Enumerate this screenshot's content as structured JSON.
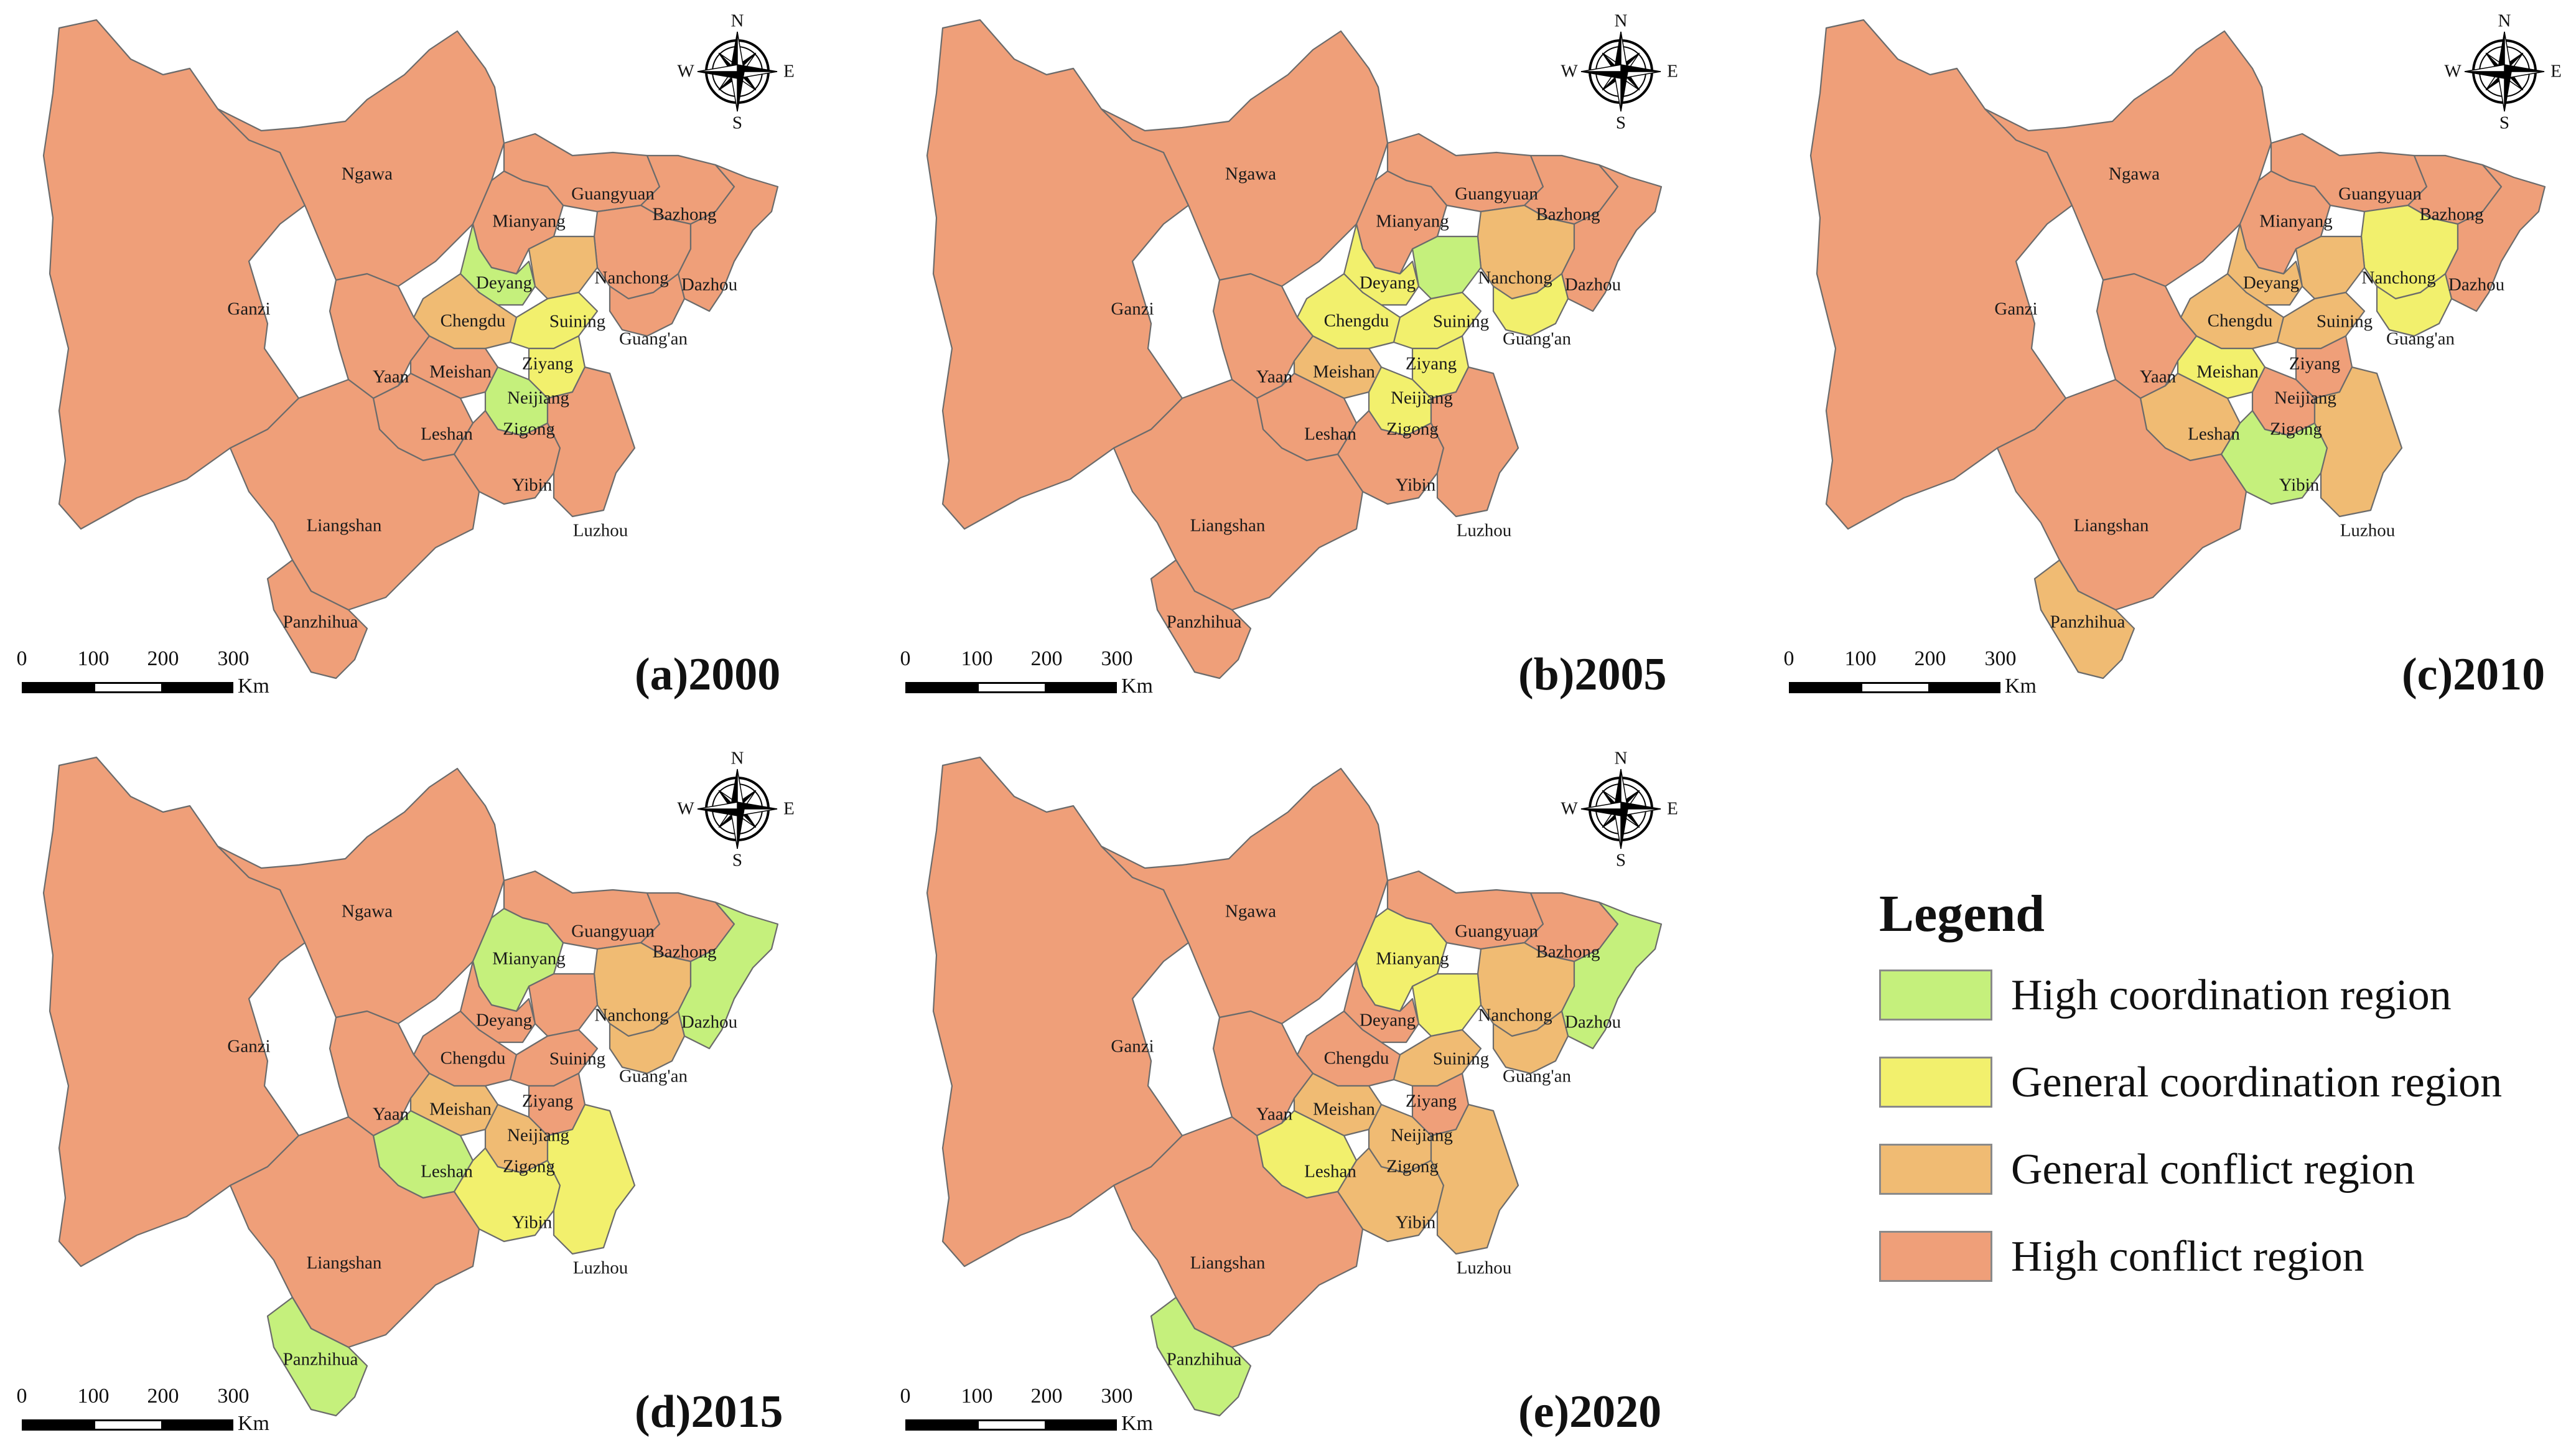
{
  "colors": {
    "high_coordination": "#c5f07c",
    "general_coordination": "#f2f06d",
    "general_conflict": "#f0bb73",
    "high_conflict": "#ef9f79"
  },
  "compass": {
    "n": "N",
    "s": "S",
    "w": "W",
    "e": "E"
  },
  "scale": {
    "ticks": [
      "0",
      "100",
      "200",
      "300"
    ],
    "unit": "Km"
  },
  "legend": {
    "title": "Legend",
    "items": [
      {
        "key": "high_coordination",
        "label": "High coordination  region"
      },
      {
        "key": "general_coordination",
        "label": "General coordination region"
      },
      {
        "key": "general_conflict",
        "label": "General conflict region"
      },
      {
        "key": "high_conflict",
        "label": "High conflict region"
      }
    ]
  },
  "cities": [
    "Ganzi",
    "Ngawa",
    "Guangyuan",
    "Bazhong",
    "Mianyang",
    "Nanchong",
    "Dazhou",
    "Deyang",
    "Chengdu",
    "Suining",
    "Guang'an",
    "Ziyang",
    "Yaan",
    "Meishan",
    "Neijiang",
    "Leshan",
    "Zigong",
    "Yibin",
    "Luzhou",
    "Liangshan",
    "Panzhihua"
  ],
  "panels": [
    {
      "title": "(a)2000",
      "classes": {
        "Ganzi": "high_conflict",
        "Ngawa": "high_conflict",
        "Guangyuan": "high_conflict",
        "Bazhong": "high_conflict",
        "Mianyang": "high_conflict",
        "Nanchong": "high_conflict",
        "Dazhou": "high_conflict",
        "Deyang": "high_coordination",
        "Chengdu": "general_conflict",
        "Suining": "general_conflict",
        "Guang'an": "high_conflict",
        "Ziyang": "general_coordination",
        "Yaan": "high_conflict",
        "Meishan": "high_conflict",
        "Neijiang": "general_coordination",
        "Leshan": "high_conflict",
        "Zigong": "high_coordination",
        "Yibin": "high_conflict",
        "Luzhou": "high_conflict",
        "Liangshan": "high_conflict",
        "Panzhihua": "high_conflict"
      }
    },
    {
      "title": "(b)2005",
      "classes": {
        "Ganzi": "high_conflict",
        "Ngawa": "high_conflict",
        "Guangyuan": "high_conflict",
        "Bazhong": "high_conflict",
        "Mianyang": "high_conflict",
        "Nanchong": "general_conflict",
        "Dazhou": "high_conflict",
        "Deyang": "general_coordination",
        "Chengdu": "general_coordination",
        "Suining": "high_coordination",
        "Guang'an": "general_coordination",
        "Ziyang": "general_coordination",
        "Yaan": "high_conflict",
        "Meishan": "general_conflict",
        "Neijiang": "general_coordination",
        "Leshan": "high_conflict",
        "Zigong": "general_coordination",
        "Yibin": "high_conflict",
        "Luzhou": "high_conflict",
        "Liangshan": "high_conflict",
        "Panzhihua": "high_conflict"
      }
    },
    {
      "title": "(c)2010",
      "classes": {
        "Ganzi": "high_conflict",
        "Ngawa": "high_conflict",
        "Guangyuan": "high_conflict",
        "Bazhong": "high_conflict",
        "Mianyang": "high_conflict",
        "Nanchong": "general_coordination",
        "Dazhou": "high_conflict",
        "Deyang": "general_conflict",
        "Chengdu": "general_conflict",
        "Suining": "general_conflict",
        "Guang'an": "general_coordination",
        "Ziyang": "general_conflict",
        "Yaan": "high_conflict",
        "Meishan": "general_coordination",
        "Neijiang": "high_conflict",
        "Leshan": "general_conflict",
        "Zigong": "high_conflict",
        "Yibin": "high_coordination",
        "Luzhou": "general_conflict",
        "Liangshan": "high_conflict",
        "Panzhihua": "general_conflict"
      }
    },
    {
      "title": "(d)2015",
      "classes": {
        "Ganzi": "high_conflict",
        "Ngawa": "high_conflict",
        "Guangyuan": "high_conflict",
        "Bazhong": "high_conflict",
        "Mianyang": "high_coordination",
        "Nanchong": "general_conflict",
        "Dazhou": "high_coordination",
        "Deyang": "high_conflict",
        "Chengdu": "high_conflict",
        "Suining": "high_conflict",
        "Guang'an": "general_conflict",
        "Ziyang": "high_conflict",
        "Yaan": "high_conflict",
        "Meishan": "general_conflict",
        "Neijiang": "high_conflict",
        "Leshan": "high_coordination",
        "Zigong": "general_conflict",
        "Yibin": "general_coordination",
        "Luzhou": "general_coordination",
        "Liangshan": "high_conflict",
        "Panzhihua": "high_coordination"
      }
    },
    {
      "title": "(e)2020",
      "classes": {
        "Ganzi": "high_conflict",
        "Ngawa": "high_conflict",
        "Guangyuan": "high_conflict",
        "Bazhong": "high_conflict",
        "Mianyang": "general_coordination",
        "Nanchong": "general_conflict",
        "Dazhou": "high_coordination",
        "Deyang": "high_conflict",
        "Chengdu": "high_conflict",
        "Suining": "general_coordination",
        "Guang'an": "general_conflict",
        "Ziyang": "general_conflict",
        "Yaan": "high_conflict",
        "Meishan": "general_conflict",
        "Neijiang": "high_conflict",
        "Leshan": "general_coordination",
        "Zigong": "general_conflict",
        "Yibin": "general_conflict",
        "Luzhou": "general_conflict",
        "Liangshan": "high_conflict",
        "Panzhihua": "high_coordination"
      }
    }
  ]
}
